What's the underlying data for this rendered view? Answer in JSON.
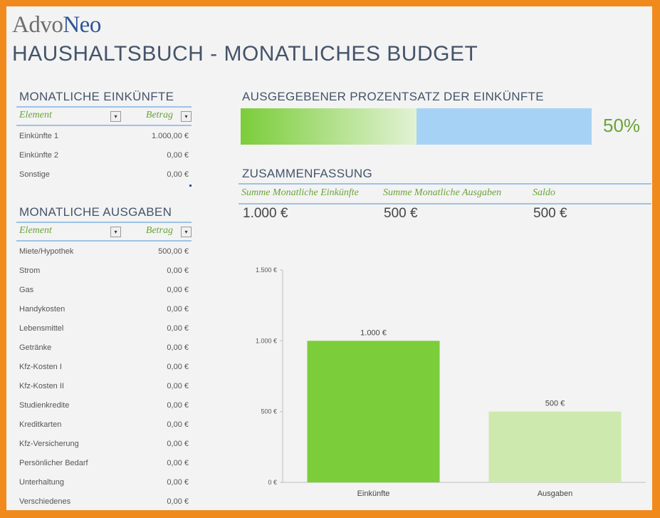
{
  "logo": {
    "part1": "Advo",
    "part2": "Neo"
  },
  "title": "HAUSHALTSBUCH - MONATLICHES BUDGET",
  "income": {
    "title": "MONATLICHE EINKÜNFTE",
    "col_element": "Element",
    "col_amount": "Betrag",
    "dropdown_glyph": "▾",
    "rows": [
      {
        "label": "Einkünfte 1",
        "value": "1.000,00 €"
      },
      {
        "label": "Einkünfte 2",
        "value": "0,00 €"
      },
      {
        "label": "Sonstige",
        "value": "0,00 €"
      }
    ]
  },
  "expenses": {
    "title": "MONATLICHE AUSGABEN",
    "col_element": "Element",
    "col_amount": "Betrag",
    "dropdown_glyph": "▾",
    "rows": [
      {
        "label": "Miete/Hypothek",
        "value": "500,00 €"
      },
      {
        "label": "Strom",
        "value": "0,00 €"
      },
      {
        "label": "Gas",
        "value": "0,00 €"
      },
      {
        "label": "Handykosten",
        "value": "0,00 €"
      },
      {
        "label": "Lebensmittel",
        "value": "0,00 €"
      },
      {
        "label": "Getränke",
        "value": "0,00 €"
      },
      {
        "label": "Kfz-Kosten I",
        "value": "0,00 €"
      },
      {
        "label": "Kfz-Kosten II",
        "value": "0,00 €"
      },
      {
        "label": "Studienkredite",
        "value": "0,00 €"
      },
      {
        "label": "Kreditkarten",
        "value": "0,00 €"
      },
      {
        "label": "Kfz-Versicherung",
        "value": "0,00 €"
      },
      {
        "label": "Persönlicher Bedarf",
        "value": "0,00 €"
      },
      {
        "label": "Unterhaltung",
        "value": "0,00 €"
      },
      {
        "label": "Verschiedenes",
        "value": "0,00 €"
      }
    ]
  },
  "percent_spent": {
    "title": "AUSGEGEBENER PROZENTSATZ DER EINKÜNFTE",
    "fraction": 0.5,
    "label": "50%",
    "colors": {
      "fill_start": "#7bcd3a",
      "fill_end": "#e2f2d4",
      "rest": "#a6d3f5"
    }
  },
  "summary": {
    "title": "ZUSAMMENFASSUNG",
    "headers": [
      "Summe Monatliche Einkünfte",
      "Summe Monatliche Ausgaben",
      "Saldo"
    ],
    "values": [
      "1.000 €",
      "500 €",
      "500 €"
    ]
  },
  "chart_data": {
    "type": "bar",
    "categories": [
      "Einkünfte",
      "Ausgaben"
    ],
    "values": [
      1000,
      500
    ],
    "data_labels": [
      "1.000 €",
      "500 €"
    ],
    "y_ticks": [
      0,
      500,
      1000,
      1500
    ],
    "y_tick_labels": [
      "0 €",
      "500 €",
      "1.000 €",
      "1.500 €"
    ],
    "ylim": [
      0,
      1500
    ],
    "colors": [
      "#7bcd3a",
      "#cde9ad"
    ],
    "title": "",
    "xlabel": "",
    "ylabel": ""
  }
}
